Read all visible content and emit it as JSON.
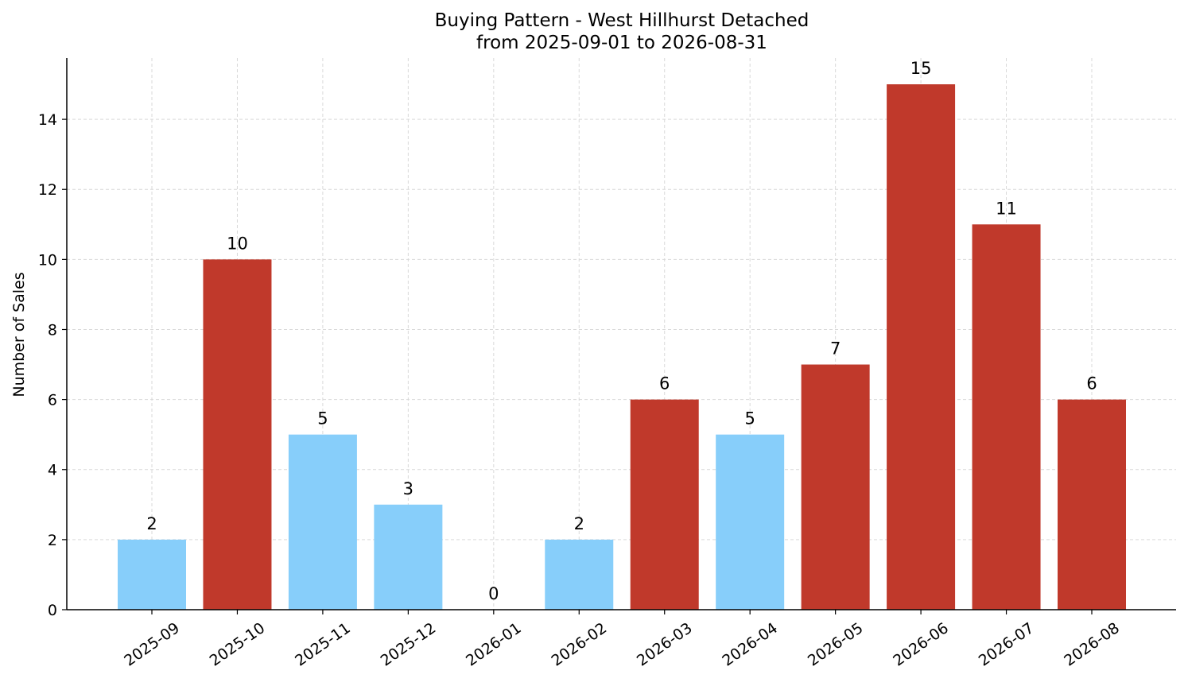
{
  "chart_data": {
    "type": "bar",
    "title": "Buying Pattern - West Hillhurst Detached",
    "subtitle": "from 2025-09-01 to 2026-08-31",
    "xlabel": "",
    "ylabel": "Number of Sales",
    "categories": [
      "2025-09",
      "2025-10",
      "2025-11",
      "2025-12",
      "2026-01",
      "2026-02",
      "2026-03",
      "2026-04",
      "2026-05",
      "2026-06",
      "2026-07",
      "2026-08"
    ],
    "values": [
      2,
      10,
      5,
      3,
      0,
      2,
      6,
      5,
      7,
      15,
      11,
      6
    ],
    "bar_colors": [
      "#87CEFA",
      "#C0392B",
      "#87CEFA",
      "#87CEFA",
      "#87CEFA",
      "#87CEFA",
      "#C0392B",
      "#87CEFA",
      "#C0392B",
      "#C0392B",
      "#C0392B",
      "#C0392B"
    ],
    "ylim": [
      0,
      15.75
    ],
    "yticks": [
      0,
      2,
      4,
      6,
      8,
      10,
      12,
      14
    ],
    "grid": true,
    "legend": "none"
  }
}
